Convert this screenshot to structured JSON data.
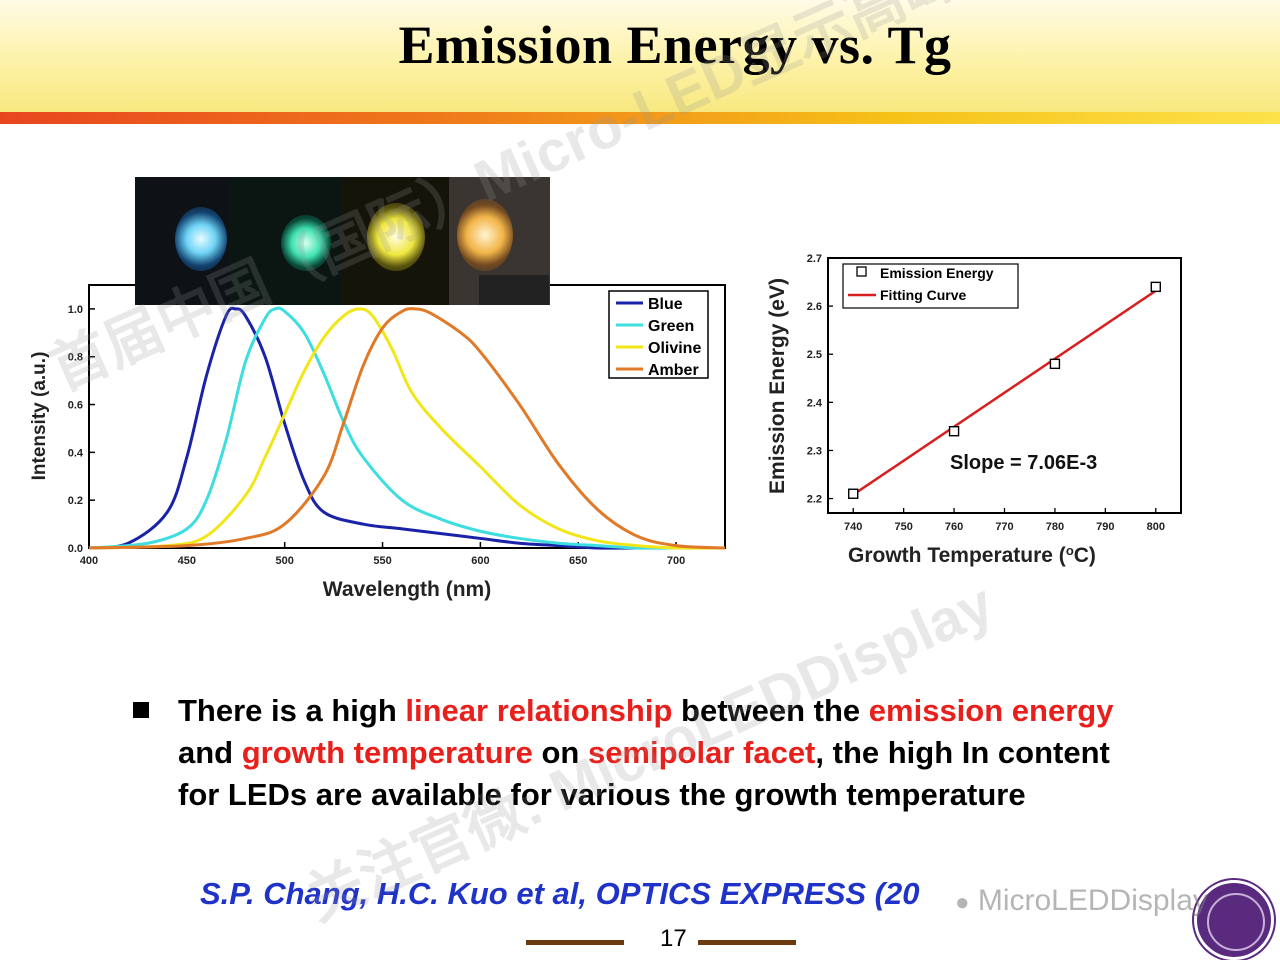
{
  "slide": {
    "title": "Emission Energy vs. Tg",
    "page_number": "17",
    "bullet": {
      "p1": "There is a high ",
      "h1": "linear relationship",
      "p2": " between the ",
      "h2": "emission energy",
      "p3": " and ",
      "h3": "growth temperature",
      "p4": " on ",
      "h4": "semipolar facet",
      "p5": ", the high In content for LEDs are available for various the growth temperature"
    },
    "citation": "S.P. Chang, H.C. Kuo et al, OPTICS EXPRESS (20",
    "watermarks": {
      "diagonal": "首届中国（国际）Micro-LED显示高峰论坛",
      "lower": "关注官微: MicroLEDDisplay",
      "source": "MicroLEDDisplay"
    },
    "colors": {
      "accent_red": "#e8201c",
      "citation_blue": "#2033c8",
      "blue": "#1a22a8",
      "green": "#3ddde0",
      "olivine": "#f2e61a",
      "amber": "#e07a28",
      "fit_red": "#d81e1e"
    }
  },
  "chart_data": [
    {
      "type": "line",
      "xlabel": "Wavelength (nm)",
      "ylabel": "Intensity (a.u.)",
      "xlim": [
        400,
        725
      ],
      "ylim": [
        0,
        1.1
      ],
      "xticks": [
        400,
        450,
        500,
        550,
        600,
        650,
        700
      ],
      "yticks": [
        0.0,
        0.2,
        0.4,
        0.6,
        0.8,
        1.0
      ],
      "xtick_labels": [
        "400",
        "450",
        "500",
        "550",
        "600",
        "650",
        "700"
      ],
      "ytick_labels": [
        "0.0",
        "0.2",
        "0.4",
        "0.6",
        "0.8",
        "1.0"
      ],
      "legend_position": "top-right",
      "series": [
        {
          "name": "Blue",
          "color": "#1a22a8",
          "x": [
            400,
            420,
            440,
            450,
            460,
            470,
            475,
            480,
            490,
            500,
            510,
            520,
            540,
            560,
            580,
            600,
            620,
            640,
            660,
            680,
            700,
            725
          ],
          "y": [
            0.0,
            0.02,
            0.15,
            0.38,
            0.72,
            0.97,
            1.0,
            0.97,
            0.8,
            0.52,
            0.28,
            0.15,
            0.1,
            0.08,
            0.06,
            0.04,
            0.02,
            0.01,
            0.0,
            0.0,
            0.0,
            0.0
          ]
        },
        {
          "name": "Green",
          "color": "#3ddde0",
          "x": [
            400,
            430,
            450,
            460,
            470,
            480,
            490,
            495,
            500,
            510,
            520,
            530,
            540,
            560,
            580,
            600,
            620,
            640,
            660,
            680,
            700,
            725
          ],
          "y": [
            0.0,
            0.02,
            0.08,
            0.2,
            0.45,
            0.78,
            0.96,
            1.0,
            0.99,
            0.9,
            0.73,
            0.53,
            0.38,
            0.2,
            0.12,
            0.07,
            0.04,
            0.02,
            0.01,
            0.0,
            0.0,
            0.0
          ]
        },
        {
          "name": "Olivine",
          "color": "#f2e61a",
          "x": [
            400,
            440,
            460,
            480,
            490,
            500,
            510,
            520,
            530,
            538,
            545,
            555,
            565,
            580,
            600,
            620,
            640,
            660,
            680,
            700,
            725
          ],
          "y": [
            0.0,
            0.01,
            0.05,
            0.22,
            0.38,
            0.56,
            0.74,
            0.88,
            0.97,
            1.0,
            0.97,
            0.83,
            0.65,
            0.5,
            0.34,
            0.18,
            0.08,
            0.03,
            0.01,
            0.0,
            0.0
          ]
        },
        {
          "name": "Amber",
          "color": "#e07a28",
          "x": [
            400,
            450,
            480,
            500,
            520,
            530,
            540,
            550,
            560,
            567,
            575,
            590,
            600,
            620,
            640,
            660,
            680,
            700,
            725
          ],
          "y": [
            0.0,
            0.01,
            0.04,
            0.1,
            0.3,
            0.52,
            0.76,
            0.92,
            0.99,
            1.0,
            0.98,
            0.9,
            0.82,
            0.6,
            0.35,
            0.16,
            0.05,
            0.01,
            0.0
          ]
        }
      ]
    },
    {
      "type": "scatter",
      "xlabel": "Growth Temperature (",
      "xlabel_unit": "o",
      "xlabel_end": "C)",
      "ylabel": "Emission Energy (eV)",
      "xlim": [
        735,
        805
      ],
      "ylim": [
        2.17,
        2.7
      ],
      "xticks": [
        740,
        750,
        760,
        770,
        780,
        790,
        800
      ],
      "yticks": [
        2.2,
        2.3,
        2.4,
        2.5,
        2.6,
        2.7
      ],
      "xtick_labels": [
        "740",
        "750",
        "760",
        "770",
        "780",
        "790",
        "800"
      ],
      "ytick_labels": [
        "2.2",
        "2.3",
        "2.4",
        "2.5",
        "2.6",
        "2.7"
      ],
      "legend_position": "top-left",
      "series": [
        {
          "name": "Emission Energy",
          "marker": "open-square",
          "x": [
            740,
            760,
            780,
            800
          ],
          "y": [
            2.21,
            2.34,
            2.48,
            2.64
          ]
        },
        {
          "name": "Fitting Curve",
          "line": true,
          "color": "#d81e1e",
          "x": [
            740,
            800
          ],
          "y": [
            2.208,
            2.632
          ]
        }
      ],
      "annotation": "Slope = 7.06E-3"
    }
  ]
}
